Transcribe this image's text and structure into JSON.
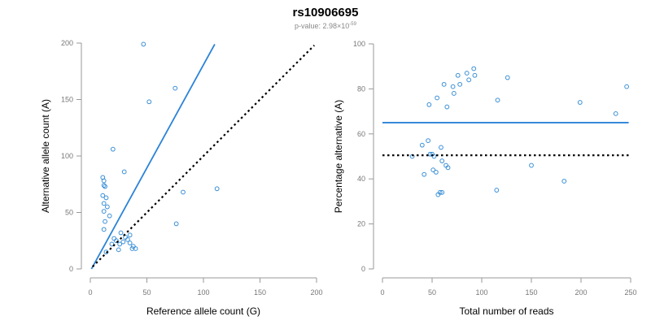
{
  "header": {
    "title": "rs10906695",
    "pvalue_prefix": "p-value: 2.98×10",
    "pvalue_exponent": "-59"
  },
  "colors": {
    "point": "#3a8fd6",
    "fit_line": "#2b83d8",
    "reference_line": "#000000"
  },
  "chart_data": [
    {
      "type": "scatter",
      "xlabel": "Reference allele count (G)",
      "ylabel": "Alternative allele count (A)",
      "xlim": [
        0,
        200
      ],
      "ylim": [
        0,
        200
      ],
      "xticks": [
        0,
        50,
        100,
        150,
        200
      ],
      "yticks": [
        0,
        50,
        100,
        150,
        200
      ],
      "points": [
        {
          "x": 11,
          "y": 81
        },
        {
          "x": 12,
          "y": 78
        },
        {
          "x": 12,
          "y": 74
        },
        {
          "x": 13,
          "y": 73
        },
        {
          "x": 11,
          "y": 65
        },
        {
          "x": 14,
          "y": 63
        },
        {
          "x": 12,
          "y": 58
        },
        {
          "x": 15,
          "y": 55
        },
        {
          "x": 12,
          "y": 51
        },
        {
          "x": 17,
          "y": 47
        },
        {
          "x": 13,
          "y": 42
        },
        {
          "x": 12,
          "y": 35
        },
        {
          "x": 14,
          "y": 15
        },
        {
          "x": 19,
          "y": 22
        },
        {
          "x": 21,
          "y": 27
        },
        {
          "x": 23,
          "y": 25
        },
        {
          "x": 26,
          "y": 22
        },
        {
          "x": 25,
          "y": 17
        },
        {
          "x": 27,
          "y": 32
        },
        {
          "x": 29,
          "y": 24
        },
        {
          "x": 31,
          "y": 28
        },
        {
          "x": 33,
          "y": 26
        },
        {
          "x": 35,
          "y": 23
        },
        {
          "x": 35,
          "y": 30
        },
        {
          "x": 38,
          "y": 20
        },
        {
          "x": 40,
          "y": 18
        },
        {
          "x": 37,
          "y": 18
        },
        {
          "x": 20,
          "y": 106
        },
        {
          "x": 30,
          "y": 86
        },
        {
          "x": 47,
          "y": 199
        },
        {
          "x": 52,
          "y": 148
        },
        {
          "x": 75,
          "y": 160
        },
        {
          "x": 76,
          "y": 40
        },
        {
          "x": 82,
          "y": 68
        },
        {
          "x": 112,
          "y": 71
        }
      ],
      "lines": [
        {
          "name": "",
          "style": "solid",
          "color": "#2b83d8",
          "x": [
            1,
            110
          ],
          "y": [
            0,
            199
          ]
        },
        {
          "name": "",
          "style": "dotted",
          "color": "#000000",
          "x": [
            2,
            198
          ],
          "y": [
            2,
            198
          ]
        }
      ]
    },
    {
      "type": "scatter",
      "xlabel": "Total number of reads",
      "ylabel": "Percentage alternative (A)",
      "xlim": [
        0,
        250
      ],
      "ylim": [
        0,
        100
      ],
      "xticks": [
        0,
        50,
        100,
        150,
        200,
        250
      ],
      "yticks": [
        0,
        20,
        40,
        60,
        80,
        100
      ],
      "points": [
        {
          "x": 30,
          "y": 50
        },
        {
          "x": 40,
          "y": 55
        },
        {
          "x": 42,
          "y": 42
        },
        {
          "x": 46,
          "y": 57
        },
        {
          "x": 47,
          "y": 73
        },
        {
          "x": 48,
          "y": 51
        },
        {
          "x": 50,
          "y": 51
        },
        {
          "x": 51,
          "y": 44
        },
        {
          "x": 52,
          "y": 50
        },
        {
          "x": 54,
          "y": 43
        },
        {
          "x": 55,
          "y": 76
        },
        {
          "x": 56,
          "y": 33
        },
        {
          "x": 58,
          "y": 34
        },
        {
          "x": 59,
          "y": 54
        },
        {
          "x": 60,
          "y": 34
        },
        {
          "x": 60,
          "y": 48
        },
        {
          "x": 62,
          "y": 82
        },
        {
          "x": 64,
          "y": 46
        },
        {
          "x": 65,
          "y": 72
        },
        {
          "x": 66,
          "y": 45
        },
        {
          "x": 71,
          "y": 81
        },
        {
          "x": 72,
          "y": 78
        },
        {
          "x": 76,
          "y": 86
        },
        {
          "x": 78,
          "y": 82
        },
        {
          "x": 85,
          "y": 87
        },
        {
          "x": 87,
          "y": 84
        },
        {
          "x": 92,
          "y": 89
        },
        {
          "x": 93,
          "y": 86
        },
        {
          "x": 115,
          "y": 35
        },
        {
          "x": 116,
          "y": 75
        },
        {
          "x": 126,
          "y": 85
        },
        {
          "x": 150,
          "y": 46
        },
        {
          "x": 183,
          "y": 39
        },
        {
          "x": 199,
          "y": 74
        },
        {
          "x": 235,
          "y": 69
        },
        {
          "x": 246,
          "y": 81
        }
      ],
      "lines": [
        {
          "name": "",
          "style": "solid",
          "color": "#2b83d8",
          "x": [
            0,
            248
          ],
          "y": [
            65,
            65
          ]
        },
        {
          "name": "",
          "style": "dotted",
          "color": "#000000",
          "x": [
            0,
            248
          ],
          "y": [
            50.5,
            50.5
          ]
        }
      ]
    }
  ]
}
